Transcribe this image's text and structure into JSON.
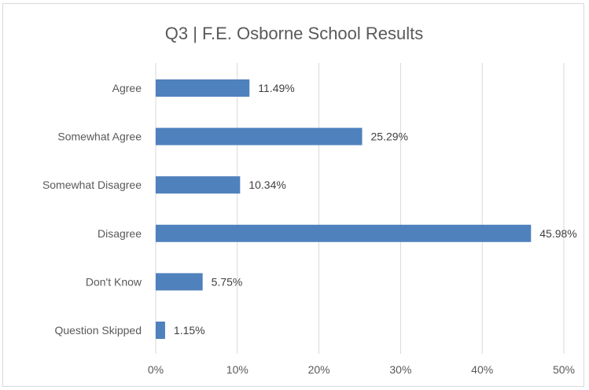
{
  "chart_data": {
    "type": "bar",
    "orientation": "horizontal",
    "title": "Q3 | F.E. Osborne School Results",
    "categories": [
      "Agree",
      "Somewhat Agree",
      "Somewhat Disagree",
      "Disagree",
      "Don't Know",
      "Question Skipped"
    ],
    "values": [
      11.49,
      25.29,
      10.34,
      45.98,
      5.75,
      1.15
    ],
    "data_labels": [
      "11.49%",
      "25.29%",
      "10.34%",
      "45.98%",
      "5.75%",
      "1.15%"
    ],
    "xlim": [
      0,
      50
    ],
    "x_ticks": [
      0,
      10,
      20,
      30,
      40,
      50
    ],
    "x_tick_labels": [
      "0%",
      "10%",
      "20%",
      "30%",
      "40%",
      "50%"
    ],
    "xlabel": "",
    "ylabel": "",
    "grid": "vertical",
    "legend": "none",
    "bar_color": "#4F81BD"
  }
}
